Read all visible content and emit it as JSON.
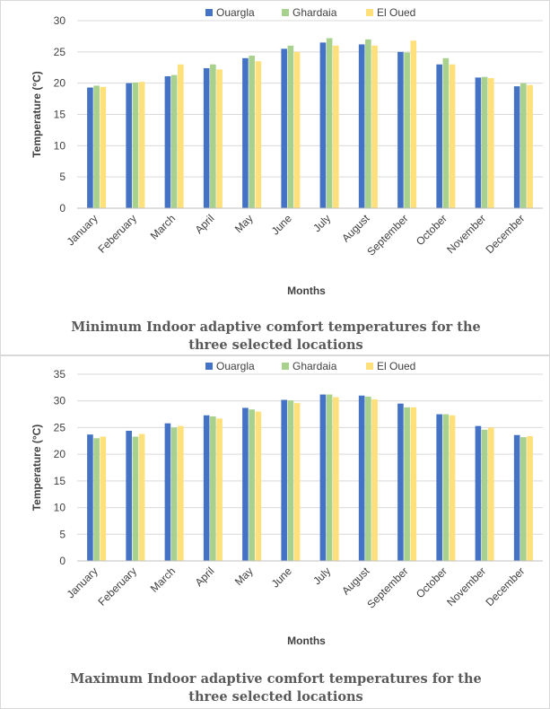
{
  "chart_data": [
    {
      "type": "bar",
      "title": "",
      "caption_line1": "Minimum Indoor adaptive comfort temperatures for the",
      "caption_line2": "three selected locations",
      "xlabel": "Months",
      "ylabel": "Temperature (°C)",
      "ylim": [
        0,
        30
      ],
      "yticks": [
        0,
        5,
        10,
        15,
        20,
        25,
        30
      ],
      "legend_position": "top",
      "grid": true,
      "categories": [
        "January",
        "Feberuary",
        "March",
        "April",
        "May",
        "June",
        "July",
        "August",
        "September",
        "October",
        "November",
        "December"
      ],
      "series": [
        {
          "name": "Ouargla",
          "color": "#4472c4",
          "values": [
            19.3,
            20.0,
            21.1,
            22.4,
            24.0,
            25.5,
            26.5,
            26.2,
            25.0,
            23.0,
            20.9,
            19.5
          ]
        },
        {
          "name": "Ghardaia",
          "color": "#a9d18e",
          "values": [
            19.6,
            20.1,
            21.3,
            23.0,
            24.4,
            26.0,
            27.2,
            27.0,
            24.9,
            24.0,
            21.0,
            20.0
          ]
        },
        {
          "name": "El Oued",
          "color": "#ffe07a",
          "values": [
            19.4,
            20.2,
            23.0,
            22.2,
            23.5,
            25.0,
            26.0,
            26.0,
            26.8,
            23.0,
            20.8,
            19.7
          ]
        }
      ]
    },
    {
      "type": "bar",
      "title": "",
      "caption_line1": "Maximum Indoor adaptive comfort temperatures for the",
      "caption_line2": "three selected locations",
      "xlabel": "Months",
      "ylabel": "Temperature (°C)",
      "ylim": [
        0,
        35
      ],
      "yticks": [
        0,
        5,
        10,
        15,
        20,
        25,
        30,
        35
      ],
      "legend_position": "top",
      "grid": true,
      "categories": [
        "January",
        "Feberuary",
        "March",
        "April",
        "May",
        "June",
        "July",
        "August",
        "September",
        "October",
        "November",
        "December"
      ],
      "series": [
        {
          "name": "Ouargla",
          "color": "#4472c4",
          "values": [
            23.7,
            24.4,
            25.8,
            27.3,
            28.7,
            30.2,
            31.2,
            31.0,
            29.5,
            27.5,
            25.3,
            23.6
          ]
        },
        {
          "name": "Ghardaia",
          "color": "#a9d18e",
          "values": [
            23.0,
            23.3,
            25.0,
            27.1,
            28.4,
            30.1,
            31.2,
            30.8,
            28.8,
            27.5,
            24.6,
            23.2
          ]
        },
        {
          "name": "El Oued",
          "color": "#ffe07a",
          "values": [
            23.3,
            23.8,
            25.3,
            26.7,
            28.0,
            29.6,
            30.7,
            30.3,
            28.8,
            27.3,
            25.0,
            23.4
          ]
        }
      ]
    }
  ]
}
